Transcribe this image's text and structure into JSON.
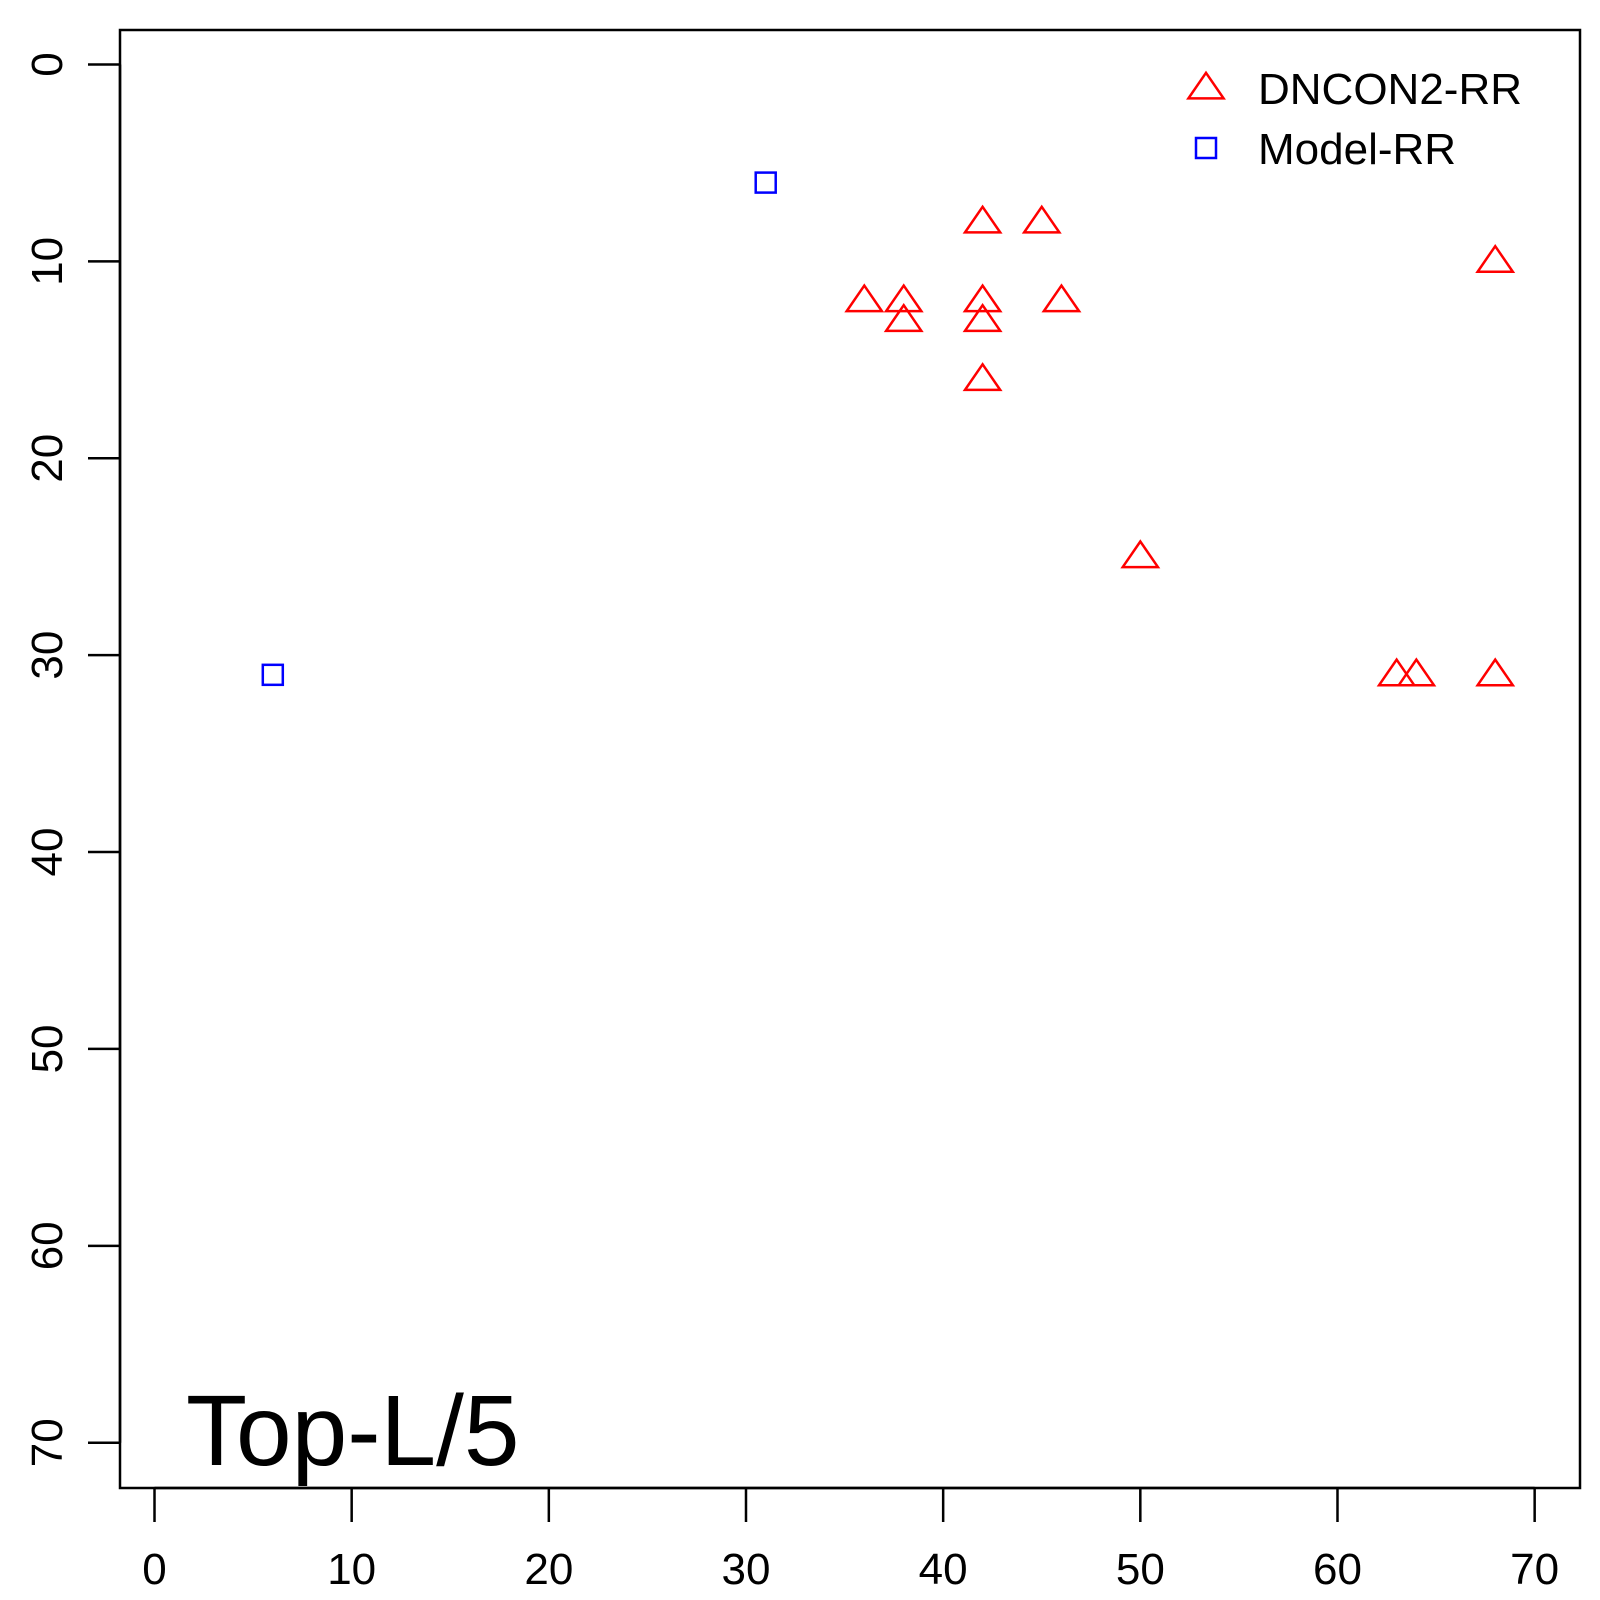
{
  "chart_data": {
    "type": "scatter",
    "title": "",
    "xlabel": "",
    "ylabel": "",
    "xlim": [
      -1.75,
      72.3
    ],
    "ylim": [
      -1.75,
      72.3
    ],
    "y_reversed": true,
    "x_ticks": [
      0,
      10,
      20,
      30,
      40,
      50,
      60,
      70
    ],
    "y_ticks": [
      0,
      10,
      20,
      30,
      40,
      50,
      60,
      70
    ],
    "grid": false,
    "legend_position": "top-right",
    "annotation": "Top-L/5",
    "annotation_position": "bottom-left",
    "series": [
      {
        "name": "DNCON2-RR",
        "marker": "triangle",
        "color": "#ff0000",
        "points": [
          {
            "x": 42,
            "y": 8
          },
          {
            "x": 45,
            "y": 8
          },
          {
            "x": 68,
            "y": 10
          },
          {
            "x": 36,
            "y": 12
          },
          {
            "x": 38,
            "y": 12
          },
          {
            "x": 42,
            "y": 12
          },
          {
            "x": 46,
            "y": 12
          },
          {
            "x": 38,
            "y": 13
          },
          {
            "x": 42,
            "y": 13
          },
          {
            "x": 42,
            "y": 16
          },
          {
            "x": 50,
            "y": 25
          },
          {
            "x": 63,
            "y": 31
          },
          {
            "x": 64,
            "y": 31
          },
          {
            "x": 68,
            "y": 31
          }
        ]
      },
      {
        "name": "Model-RR",
        "marker": "square",
        "color": "#0000ff",
        "points": [
          {
            "x": 31,
            "y": 6
          },
          {
            "x": 6,
            "y": 31
          }
        ]
      }
    ]
  }
}
